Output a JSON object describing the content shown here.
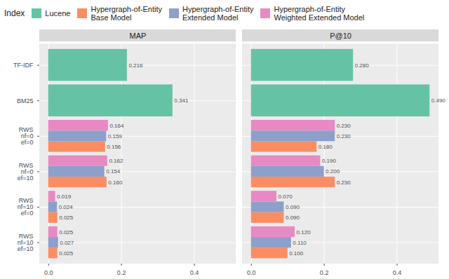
{
  "chart_data": [
    {
      "type": "bar",
      "title": "MAP",
      "orientation": "horizontal",
      "data_labels": true,
      "grid": true,
      "legend": "top",
      "legend_title": "Index",
      "categories": [
        "TF-IDF",
        "BM25",
        "RWS\nnf=0\nef=0",
        "RWS\nnf=0\nef=10",
        "RWS\nnf=10\nef=0",
        "RWS\nnf=10\nef=10"
      ],
      "xlim": [
        -0.0245,
        0.5145
      ],
      "xticks": [
        {
          "value": 0,
          "label": "0.0"
        },
        0.2,
        0.4
      ],
      "series": [
        {
          "name": "Lucene",
          "color": "#66C2A5",
          "values": [
            0.216,
            0.341,
            null,
            null,
            null,
            null
          ],
          "value_labels": [
            "0.216",
            "0.341",
            null,
            null,
            null,
            null
          ]
        },
        {
          "name": "Hypergraph-of-Entity\nBase Model",
          "color": "#FC8D62",
          "values": [
            null,
            null,
            0.156,
            0.16,
            0.025,
            0.025
          ],
          "value_labels": [
            null,
            null,
            "0.156",
            "0.160",
            "0.025",
            "0.025"
          ]
        },
        {
          "name": "Hypergraph-of-Entity\nExtended Model",
          "color": "#8DA0CB",
          "values": [
            null,
            null,
            0.159,
            0.154,
            0.024,
            0.027
          ],
          "value_labels": [
            null,
            null,
            "0.159",
            "0.154",
            "0.024",
            "0.027"
          ]
        },
        {
          "name": "Hypergraph-of-Entity\nWeighted Extended Model",
          "color": "#E78AC3",
          "values": [
            null,
            null,
            0.164,
            0.162,
            0.019,
            0.025
          ],
          "value_labels": [
            null,
            null,
            "0.164",
            "0.162",
            "0.019",
            "0.025"
          ]
        }
      ]
    },
    {
      "type": "bar",
      "title": "P@10",
      "orientation": "horizontal",
      "data_labels": true,
      "grid": true,
      "categories": [
        "TF-IDF",
        "BM25",
        "RWS\nnf=0\nef=0",
        "RWS\nnf=0\nef=10",
        "RWS\nnf=10\nef=0",
        "RWS\nnf=10\nef=10"
      ],
      "xlim": [
        -0.0245,
        0.5145
      ],
      "xticks": [
        {
          "value": 0,
          "label": "0.0"
        },
        0.2,
        0.4
      ],
      "series": [
        {
          "name": "Lucene",
          "color": "#66C2A5",
          "values": [
            0.28,
            0.49,
            null,
            null,
            null,
            null
          ],
          "value_labels": [
            "0.280",
            "0.490",
            null,
            null,
            null,
            null
          ]
        },
        {
          "name": "Hypergraph-of-Entity\nBase Model",
          "color": "#FC8D62",
          "values": [
            null,
            null,
            0.18,
            0.23,
            0.09,
            0.1
          ],
          "value_labels": [
            null,
            null,
            "0.180",
            "0.230",
            "0.090",
            "0.100"
          ]
        },
        {
          "name": "Hypergraph-of-Entity\nExtended Model",
          "color": "#8DA0CB",
          "values": [
            null,
            null,
            0.23,
            0.2,
            0.09,
            0.11
          ],
          "value_labels": [
            null,
            null,
            "0.230",
            "0.200",
            "0.090",
            "0.110"
          ]
        },
        {
          "name": "Hypergraph-of-Entity\nWeighted Extended Model",
          "color": "#E78AC3",
          "values": [
            null,
            null,
            0.23,
            0.19,
            0.07,
            0.12
          ],
          "value_labels": [
            null,
            null,
            "0.230",
            "0.190",
            "0.070",
            "0.120"
          ]
        }
      ]
    }
  ]
}
